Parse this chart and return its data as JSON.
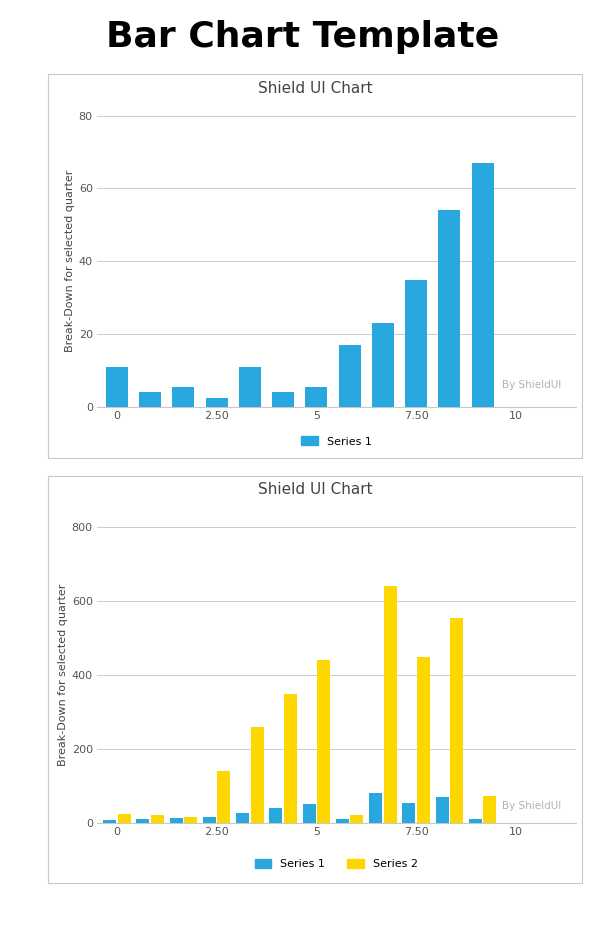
{
  "title": "Bar Chart Template",
  "title_fontsize": 26,
  "title_fontweight": "bold",
  "chart1": {
    "title": "Shield UI Chart",
    "ylabel": "Break-Down for selected quarter",
    "watermark": "By ShieldUI",
    "ylim": [
      0,
      80
    ],
    "yticks": [
      0,
      20,
      40,
      60,
      80
    ],
    "xticks": [
      0,
      2.5,
      5,
      7.5,
      10
    ],
    "xticklabels": [
      "0",
      "2.50",
      "5",
      "7.50",
      "10"
    ],
    "series1_color": "#29a8e0",
    "series1_label": "Series 1",
    "x_positions": [
      0,
      0.833,
      1.667,
      2.5,
      3.333,
      4.167,
      5.0,
      5.833,
      6.667,
      7.5,
      8.333,
      9.167,
      10.833
    ],
    "series1_values": [
      11,
      4,
      5.5,
      2.5,
      11,
      4,
      5.5,
      17,
      23,
      35,
      54,
      67,
      0
    ],
    "bar_width": 0.55
  },
  "chart2": {
    "title": "Shield UI Chart",
    "ylabel": "Break-Down for selected quarter",
    "watermark": "By ShieldUI",
    "ylim": [
      0,
      800
    ],
    "yticks": [
      0,
      200,
      400,
      600,
      800
    ],
    "xticks": [
      0,
      2.5,
      5,
      7.5,
      10
    ],
    "xticklabels": [
      "0",
      "2.50",
      "5",
      "7.50",
      "10"
    ],
    "series1_color": "#29a8e0",
    "series2_color": "#FFD700",
    "series1_label": "Series 1",
    "series2_label": "Series 2",
    "x_positions": [
      0,
      0.833,
      1.667,
      2.5,
      3.333,
      4.167,
      5.0,
      5.833,
      6.667,
      7.5,
      8.333,
      9.167,
      10.833
    ],
    "series1_values": [
      10,
      12,
      13,
      18,
      28,
      40,
      52,
      12,
      82,
      55,
      70,
      12,
      0
    ],
    "series2_values": [
      25,
      22,
      18,
      140,
      260,
      350,
      440,
      22,
      640,
      450,
      555,
      75,
      0
    ],
    "bar_width": 0.33
  },
  "bg_color": "#ffffff",
  "chart_bg_color": "#ffffff",
  "grid_color": "#cccccc",
  "border_color": "#c8c8c8",
  "watermark_color": "#aaaaaa",
  "tick_color": "#555555",
  "title_chart_fontsize": 11,
  "tick_fontsize": 8,
  "ylabel_fontsize": 8,
  "legend_fontsize": 8
}
